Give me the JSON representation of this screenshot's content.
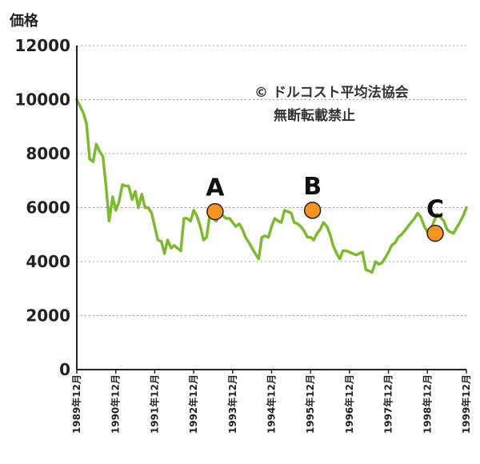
{
  "chart_data": {
    "type": "line",
    "title": "",
    "ylabel": "価格",
    "xlabel": "",
    "ylim": [
      0,
      12000
    ],
    "yticks": [
      "0",
      "2000",
      "4000",
      "6000",
      "8000",
      "10000",
      "12000"
    ],
    "grid": "horizontal-dotted",
    "xticks": [
      "1989年12月",
      "1990年12月",
      "1991年12月",
      "1992年12月",
      "1993年12月",
      "1994年12月",
      "1995年12月",
      "1996年12月",
      "1997年12月",
      "1998年12月",
      "1999年12月"
    ],
    "series": [
      {
        "name": "",
        "color": "#7dba2f",
        "x": [
          0,
          0.17,
          0.25,
          0.33,
          0.42,
          0.5,
          0.58,
          0.67,
          0.75,
          0.83,
          0.92,
          1.0,
          1.08,
          1.17,
          1.25,
          1.33,
          1.42,
          1.5,
          1.58,
          1.67,
          1.75,
          1.83,
          1.92,
          2.0,
          2.08,
          2.17,
          2.25,
          2.33,
          2.42,
          2.5,
          2.58,
          2.67,
          2.75,
          2.83,
          2.92,
          3.0,
          3.08,
          3.17,
          3.25,
          3.33,
          3.42,
          3.5,
          3.58,
          3.67,
          3.75,
          3.83,
          3.92,
          4.0,
          4.08,
          4.17,
          4.25,
          4.33,
          4.42,
          4.5,
          4.58,
          4.67,
          4.75,
          4.83,
          4.92,
          5.0,
          5.08,
          5.17,
          5.25,
          5.33,
          5.42,
          5.5,
          5.58,
          5.67,
          5.75,
          5.83,
          5.92,
          6.0,
          6.08,
          6.17,
          6.25,
          6.33,
          6.42,
          6.5,
          6.58,
          6.67,
          6.75,
          6.83,
          6.92,
          7.0,
          7.08,
          7.17,
          7.25,
          7.33,
          7.42,
          7.5,
          7.58,
          7.67,
          7.75,
          7.83,
          7.92,
          8.0,
          8.08,
          8.17,
          8.25,
          8.33,
          8.42,
          8.5,
          8.58,
          8.67,
          8.75,
          8.83,
          8.92,
          9.0,
          9.08,
          9.17,
          9.25,
          9.33,
          9.42,
          9.5,
          9.58,
          9.67,
          9.75,
          9.83,
          9.92,
          10.0
        ],
        "values": [
          10000,
          9500,
          9100,
          7800,
          7700,
          8350,
          8100,
          7900,
          6800,
          5500,
          6400,
          5900,
          6200,
          6850,
          6800,
          6800,
          6300,
          6600,
          6000,
          6500,
          6000,
          6000,
          5800,
          5300,
          4800,
          4750,
          4300,
          4800,
          4500,
          4600,
          4500,
          4400,
          5600,
          5600,
          5500,
          5900,
          5700,
          5300,
          4800,
          4900,
          5800,
          5600,
          5500,
          5800,
          5700,
          5600,
          5600,
          5450,
          5300,
          5400,
          5200,
          4900,
          4700,
          4500,
          4300,
          4100,
          4900,
          4950,
          4900,
          5300,
          5600,
          5500,
          5450,
          5900,
          5850,
          5800,
          5450,
          5400,
          5300,
          5150,
          4900,
          4900,
          4800,
          5050,
          5200,
          5450,
          5300,
          5000,
          4600,
          4300,
          4100,
          4400,
          4400,
          4350,
          4300,
          4250,
          4300,
          4350,
          3700,
          3650,
          3600,
          4000,
          3900,
          3950,
          4150,
          4350,
          4600,
          4700,
          4900,
          5000,
          5150,
          5300,
          5450,
          5600,
          5800,
          5650,
          5300,
          5100,
          5150,
          5500,
          5750,
          5650,
          5500,
          5200,
          5100,
          5050,
          5250,
          5450,
          5700,
          6000
        ]
      }
    ],
    "markers": [
      {
        "label": "A",
        "x": 3.55,
        "value": 5850,
        "color": "#f7931e"
      },
      {
        "label": "B",
        "x": 6.05,
        "value": 5900,
        "color": "#f7931e"
      },
      {
        "label": "C",
        "x": 9.2,
        "value": 5050,
        "color": "#f7931e"
      }
    ],
    "annotation_lines": [
      "© ドルコスト平均法協会",
      "無断転載禁止"
    ]
  }
}
